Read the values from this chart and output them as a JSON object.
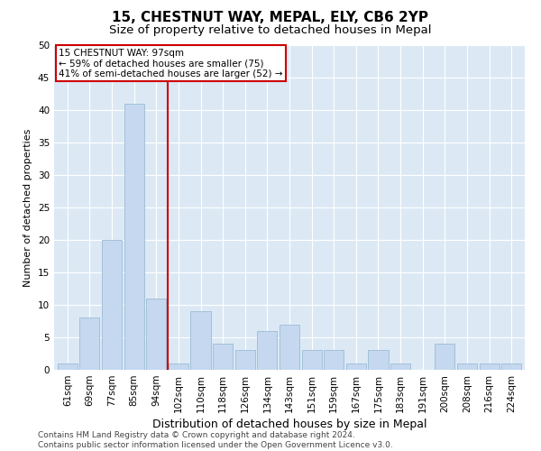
{
  "title": "15, CHESTNUT WAY, MEPAL, ELY, CB6 2YP",
  "subtitle": "Size of property relative to detached houses in Mepal",
  "xlabel": "Distribution of detached houses by size in Mepal",
  "ylabel": "Number of detached properties",
  "categories": [
    "61sqm",
    "69sqm",
    "77sqm",
    "85sqm",
    "94sqm",
    "102sqm",
    "110sqm",
    "118sqm",
    "126sqm",
    "134sqm",
    "143sqm",
    "151sqm",
    "159sqm",
    "167sqm",
    "175sqm",
    "183sqm",
    "191sqm",
    "200sqm",
    "208sqm",
    "216sqm",
    "224sqm"
  ],
  "values": [
    1,
    8,
    20,
    41,
    11,
    1,
    9,
    4,
    3,
    6,
    7,
    3,
    3,
    1,
    3,
    1,
    0,
    4,
    1,
    1,
    1
  ],
  "bar_color": "#c5d8f0",
  "bar_edge_color": "#9bbbd4",
  "property_line_x": 4.5,
  "property_line_color": "#cc0000",
  "annotation_line1": "15 CHESTNUT WAY: 97sqm",
  "annotation_line2": "← 59% of detached houses are smaller (75)",
  "annotation_line3": "41% of semi-detached houses are larger (52) →",
  "annotation_box_color": "#cc0000",
  "ylim": [
    0,
    50
  ],
  "yticks": [
    0,
    5,
    10,
    15,
    20,
    25,
    30,
    35,
    40,
    45,
    50
  ],
  "grid_color": "#ffffff",
  "plot_bg_color": "#dce9f5",
  "footer": "Contains HM Land Registry data © Crown copyright and database right 2024.\nContains public sector information licensed under the Open Government Licence v3.0.",
  "title_fontsize": 11,
  "subtitle_fontsize": 9.5,
  "xlabel_fontsize": 9,
  "ylabel_fontsize": 8,
  "tick_fontsize": 7.5,
  "annotation_fontsize": 7.5,
  "footer_fontsize": 6.5
}
